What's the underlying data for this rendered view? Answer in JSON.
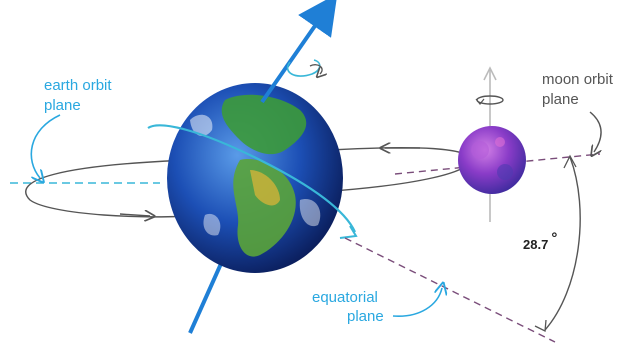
{
  "labels": {
    "earth_orbit_line1": "earth orbit",
    "earth_orbit_line2": "plane",
    "moon_orbit_line1": "moon orbit",
    "moon_orbit_line2": "plane",
    "angle": "28.7",
    "degree_symbol": "°",
    "equatorial_line1": "equatorial",
    "equatorial_line2": "plane"
  },
  "colors": {
    "axis_blue": "#1f7fd6",
    "label_blue": "#2aa8e0",
    "orbit_gray": "#555555",
    "moon_purple": "#7b3fc0"
  }
}
